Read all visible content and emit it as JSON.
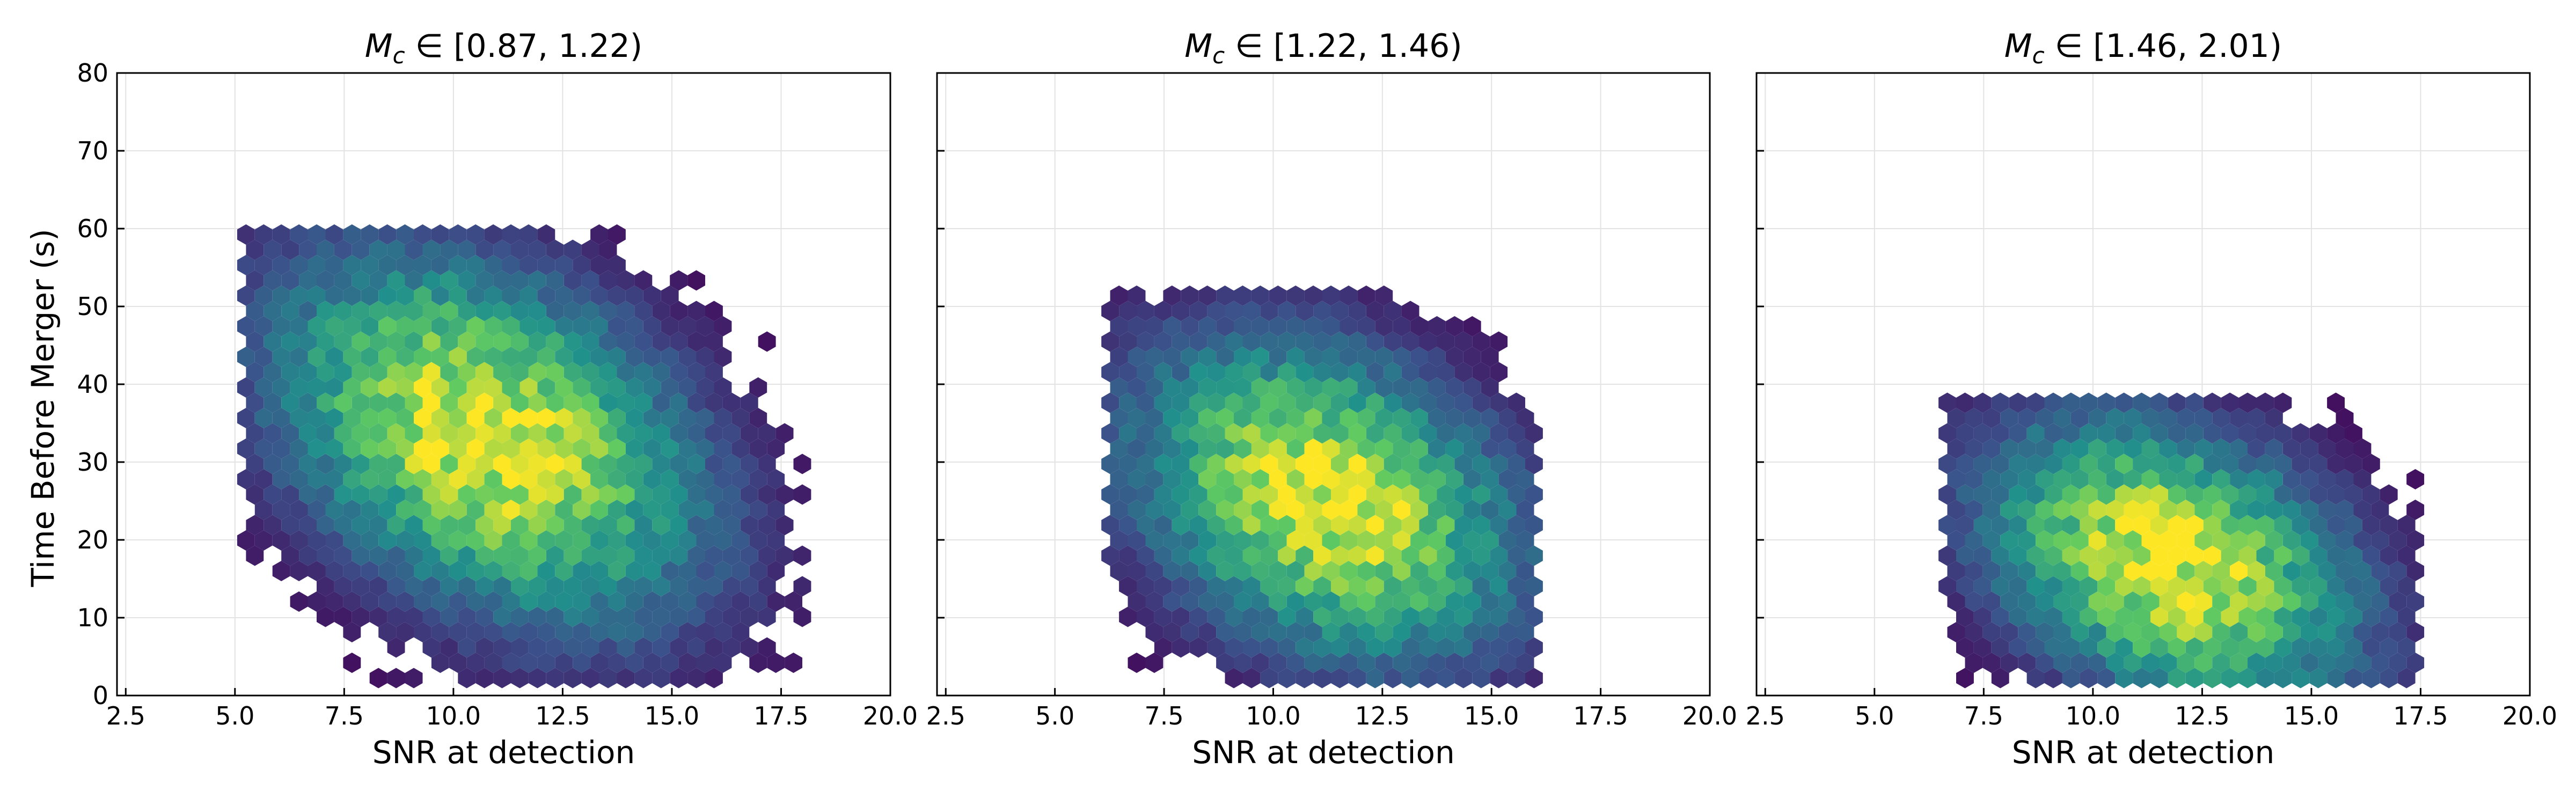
{
  "figure": {
    "ylabel": "Time Before Merger (s)"
  },
  "colormap": [
    "#440154",
    "#3b528b",
    "#21918c",
    "#5ec962",
    "#fde725"
  ],
  "chart_data": [
    {
      "type": "heatmap",
      "subtype": "hexbin",
      "title_prefix": "M",
      "title_sub": "c",
      "title_range": " ∈ [0.87, 1.22)",
      "xlabel": "SNR at detection",
      "ylabel": "Time Before Merger (s)",
      "xlim": [
        2.3,
        20.0
      ],
      "ylim": [
        0,
        80
      ],
      "xticks": [
        "2.5",
        "5.0",
        "7.5",
        "10.0",
        "12.5",
        "15.0",
        "17.5",
        "20.0"
      ],
      "yticks": [
        "0",
        "10",
        "20",
        "30",
        "40",
        "50",
        "60",
        "70",
        "80"
      ],
      "grid": true,
      "density": {
        "ridge": [
          [
            7.5,
            58
          ],
          [
            18.0,
            2
          ]
        ],
        "center": [
          10.8,
          33
        ],
        "spread_along": 4.2,
        "spread_across": 2.8,
        "x_range": [
          5.2,
          18.0
        ],
        "y_range": [
          1,
          61
        ]
      }
    },
    {
      "type": "heatmap",
      "subtype": "hexbin",
      "title_prefix": "M",
      "title_sub": "c",
      "title_range": " ∈ [1.22, 1.46)",
      "xlabel": "SNR at detection",
      "ylabel": "",
      "xlim": [
        2.3,
        20.0
      ],
      "ylim": [
        0,
        80
      ],
      "xticks": [
        "2.5",
        "5.0",
        "7.5",
        "10.0",
        "12.5",
        "15.0",
        "17.5",
        "20.0"
      ],
      "yticks": [
        "0",
        "10",
        "20",
        "30",
        "40",
        "50",
        "60",
        "70",
        "80"
      ],
      "grid": true,
      "density": {
        "ridge": [
          [
            8.0,
            50
          ],
          [
            16.0,
            10
          ]
        ],
        "center": [
          11.2,
          25
        ],
        "spread_along": 3.6,
        "spread_across": 2.6,
        "x_range": [
          6.2,
          16.0
        ],
        "y_range": [
          1,
          53
        ]
      }
    },
    {
      "type": "heatmap",
      "subtype": "hexbin",
      "title_prefix": "M",
      "title_sub": "c",
      "title_range": " ∈ [1.46, 2.01)",
      "xlabel": "SNR at detection",
      "ylabel": "",
      "xlim": [
        2.3,
        20.0
      ],
      "ylim": [
        0,
        80
      ],
      "xticks": [
        "2.5",
        "5.0",
        "7.5",
        "10.0",
        "12.5",
        "15.0",
        "17.5",
        "20.0"
      ],
      "yticks": [
        "0",
        "10",
        "20",
        "30",
        "40",
        "50",
        "60",
        "70",
        "80"
      ],
      "grid": true,
      "density": {
        "ridge": [
          [
            9.5,
            36
          ],
          [
            17.5,
            4
          ]
        ],
        "center": [
          11.8,
          17
        ],
        "spread_along": 3.4,
        "spread_across": 2.4,
        "x_range": [
          6.5,
          17.5
        ],
        "y_range": [
          1,
          38
        ]
      }
    }
  ]
}
